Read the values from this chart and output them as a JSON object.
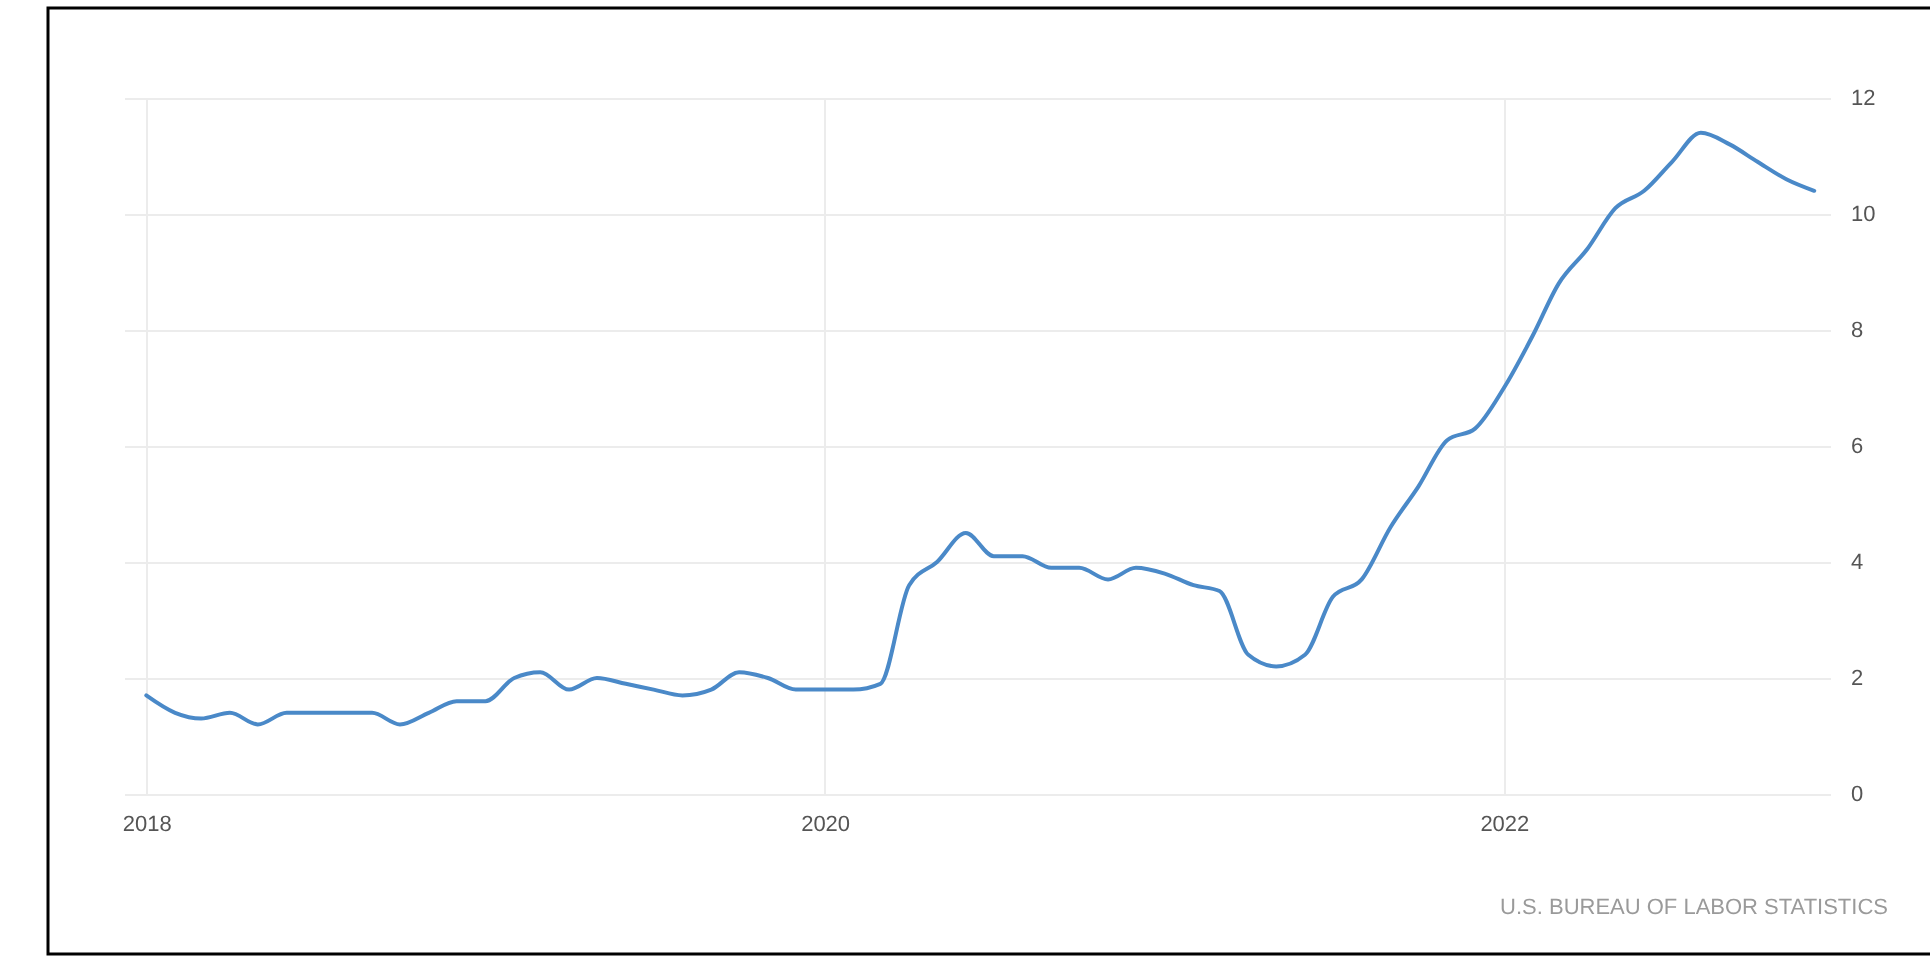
{
  "chart_data": {
    "type": "line",
    "x": [
      "2018-01",
      "2018-02",
      "2018-03",
      "2018-04",
      "2018-05",
      "2018-06",
      "2018-07",
      "2018-08",
      "2018-09",
      "2018-10",
      "2018-11",
      "2018-12",
      "2019-01",
      "2019-02",
      "2019-03",
      "2019-04",
      "2019-05",
      "2019-06",
      "2019-07",
      "2019-08",
      "2019-09",
      "2019-10",
      "2019-11",
      "2019-12",
      "2020-01",
      "2020-02",
      "2020-03",
      "2020-04",
      "2020-05",
      "2020-06",
      "2020-07",
      "2020-08",
      "2020-09",
      "2020-10",
      "2020-11",
      "2020-12",
      "2021-01",
      "2021-02",
      "2021-03",
      "2021-04",
      "2021-05",
      "2021-06",
      "2021-07",
      "2021-08",
      "2021-09",
      "2021-10",
      "2021-11",
      "2021-12",
      "2022-01",
      "2022-02",
      "2022-03",
      "2022-04",
      "2022-05",
      "2022-06",
      "2022-07",
      "2022-08",
      "2022-09",
      "2022-10",
      "2022-11",
      "2022-12"
    ],
    "series": [
      {
        "color": "#4a89c8",
        "values": [
          1.7,
          1.4,
          1.3,
          1.4,
          1.2,
          1.4,
          1.4,
          1.4,
          1.4,
          1.2,
          1.4,
          1.6,
          1.6,
          2.0,
          2.1,
          1.8,
          2.0,
          1.9,
          1.8,
          1.7,
          1.8,
          2.1,
          2.0,
          1.8,
          1.8,
          1.8,
          1.9,
          3.6,
          4.0,
          4.5,
          4.1,
          4.1,
          3.9,
          3.9,
          3.7,
          3.9,
          3.8,
          3.6,
          3.5,
          2.4,
          2.2,
          2.4,
          3.4,
          3.7,
          4.6,
          5.3,
          6.1,
          6.3,
          7.0,
          7.9,
          8.8,
          9.4,
          10.1,
          10.4,
          10.9,
          11.4,
          11.2,
          10.9,
          10.6,
          10.4
        ]
      }
    ],
    "xlim": [
      "2017-12-08",
      "2022-12-18"
    ],
    "xticks": [
      "2018",
      "2020",
      "2022"
    ],
    "ylim": [
      0,
      12
    ],
    "yticks": [
      0,
      2,
      4,
      6,
      8,
      10,
      12
    ],
    "grid": true,
    "annotations": [
      "U.S. BUREAU OF LABOR STATISTICS"
    ]
  }
}
